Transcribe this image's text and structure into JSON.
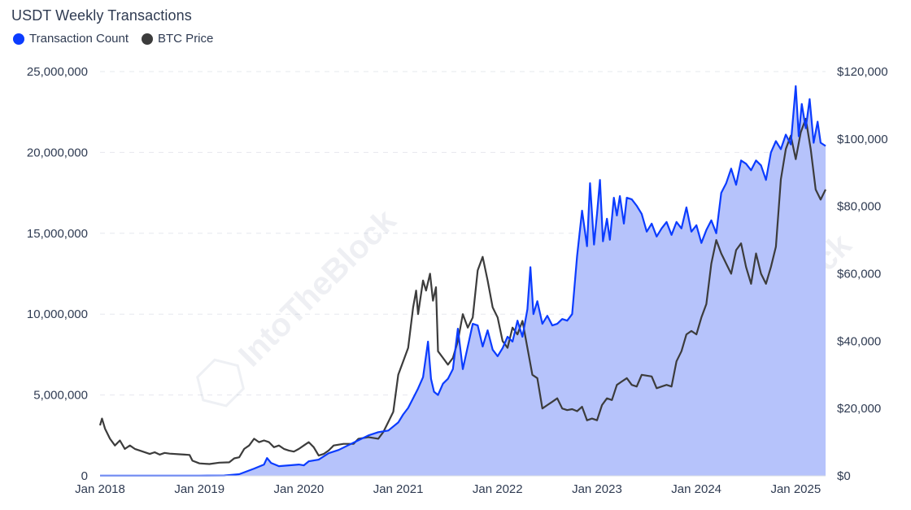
{
  "title": "USDT Weekly Transactions",
  "legend": [
    {
      "label": "Transaction Count",
      "color": "#0b3cff"
    },
    {
      "label": "BTC Price",
      "color": "#3c3c3c"
    }
  ],
  "watermark": "IntoTheBlock",
  "colors": {
    "transaction_line": "#0b3cff",
    "transaction_fill": "#b6c3fb",
    "btc_line": "#3c3c3c",
    "grid": "#e6e8ee",
    "text": "#2f3b52"
  },
  "chart_data": {
    "type": "area",
    "title": "USDT Weekly Transactions",
    "x_tick_labels": [
      "Jan 2018",
      "Jan 2019",
      "Jan 2020",
      "Jan 2021",
      "Jan 2022",
      "Jan 2023",
      "Jan 2024",
      "Jan 2025"
    ],
    "y_left_tick_labels": [
      "0",
      "5,000,000",
      "10,000,000",
      "15,000,000",
      "20,000,000",
      "25,000,000"
    ],
    "y_right_tick_labels": [
      "$0",
      "$20,000",
      "$40,000",
      "$60,000",
      "$80,000",
      "$100,000",
      "$120,000"
    ],
    "y_left_range": [
      0,
      25000000
    ],
    "y_right_range": [
      0,
      120000
    ],
    "x_range": [
      2018.0,
      2025.3
    ],
    "grid": "horizontal dashed",
    "legend_position": "top-left",
    "series": [
      {
        "name": "Transaction Count",
        "axis": "left",
        "render": "area",
        "points": [
          [
            2018.0,
            10000
          ],
          [
            2018.5,
            10000
          ],
          [
            2019.0,
            10000
          ],
          [
            2019.25,
            20000
          ],
          [
            2019.4,
            100000
          ],
          [
            2019.55,
            450000
          ],
          [
            2019.65,
            700000
          ],
          [
            2019.68,
            1100000
          ],
          [
            2019.72,
            800000
          ],
          [
            2019.8,
            600000
          ],
          [
            2019.9,
            650000
          ],
          [
            2020.0,
            700000
          ],
          [
            2020.05,
            650000
          ],
          [
            2020.1,
            900000
          ],
          [
            2020.2,
            1000000
          ],
          [
            2020.3,
            1400000
          ],
          [
            2020.4,
            1600000
          ],
          [
            2020.5,
            1900000
          ],
          [
            2020.6,
            2200000
          ],
          [
            2020.7,
            2500000
          ],
          [
            2020.8,
            2700000
          ],
          [
            2020.9,
            2800000
          ],
          [
            2021.0,
            3300000
          ],
          [
            2021.05,
            3800000
          ],
          [
            2021.1,
            4200000
          ],
          [
            2021.15,
            4800000
          ],
          [
            2021.2,
            5400000
          ],
          [
            2021.25,
            6100000
          ],
          [
            2021.3,
            8300000
          ],
          [
            2021.33,
            6000000
          ],
          [
            2021.36,
            5200000
          ],
          [
            2021.4,
            5000000
          ],
          [
            2021.45,
            5700000
          ],
          [
            2021.5,
            6000000
          ],
          [
            2021.55,
            6600000
          ],
          [
            2021.6,
            9100000
          ],
          [
            2021.65,
            6600000
          ],
          [
            2021.7,
            8000000
          ],
          [
            2021.75,
            9400000
          ],
          [
            2021.8,
            9300000
          ],
          [
            2021.85,
            8000000
          ],
          [
            2021.9,
            9000000
          ],
          [
            2021.95,
            7800000
          ],
          [
            2022.0,
            7400000
          ],
          [
            2022.05,
            7900000
          ],
          [
            2022.1,
            8600000
          ],
          [
            2022.15,
            8300000
          ],
          [
            2022.2,
            9600000
          ],
          [
            2022.25,
            8600000
          ],
          [
            2022.3,
            10300000
          ],
          [
            2022.33,
            12900000
          ],
          [
            2022.36,
            10000000
          ],
          [
            2022.4,
            10800000
          ],
          [
            2022.45,
            9400000
          ],
          [
            2022.5,
            9900000
          ],
          [
            2022.55,
            9300000
          ],
          [
            2022.6,
            9400000
          ],
          [
            2022.65,
            9700000
          ],
          [
            2022.7,
            9600000
          ],
          [
            2022.75,
            10000000
          ],
          [
            2022.8,
            13600000
          ],
          [
            2022.85,
            16400000
          ],
          [
            2022.9,
            14200000
          ],
          [
            2022.93,
            18100000
          ],
          [
            2022.97,
            14300000
          ],
          [
            2023.0,
            16200000
          ],
          [
            2023.03,
            18300000
          ],
          [
            2023.06,
            14500000
          ],
          [
            2023.1,
            15900000
          ],
          [
            2023.13,
            14600000
          ],
          [
            2023.17,
            17200000
          ],
          [
            2023.2,
            16100000
          ],
          [
            2023.23,
            17300000
          ],
          [
            2023.27,
            15600000
          ],
          [
            2023.3,
            17200000
          ],
          [
            2023.35,
            17100000
          ],
          [
            2023.4,
            16700000
          ],
          [
            2023.45,
            16200000
          ],
          [
            2023.5,
            15100000
          ],
          [
            2023.55,
            15600000
          ],
          [
            2023.6,
            14800000
          ],
          [
            2023.65,
            15300000
          ],
          [
            2023.7,
            15700000
          ],
          [
            2023.75,
            14900000
          ],
          [
            2023.8,
            15700000
          ],
          [
            2023.85,
            15300000
          ],
          [
            2023.9,
            16600000
          ],
          [
            2023.95,
            15100000
          ],
          [
            2024.0,
            15500000
          ],
          [
            2024.05,
            14400000
          ],
          [
            2024.1,
            15200000
          ],
          [
            2024.15,
            15800000
          ],
          [
            2024.2,
            15000000
          ],
          [
            2024.25,
            17500000
          ],
          [
            2024.3,
            18100000
          ],
          [
            2024.35,
            19000000
          ],
          [
            2024.4,
            18000000
          ],
          [
            2024.45,
            19500000
          ],
          [
            2024.5,
            19300000
          ],
          [
            2024.55,
            18900000
          ],
          [
            2024.6,
            19500000
          ],
          [
            2024.65,
            19200000
          ],
          [
            2024.7,
            18300000
          ],
          [
            2024.75,
            20000000
          ],
          [
            2024.8,
            20700000
          ],
          [
            2024.85,
            20200000
          ],
          [
            2024.9,
            21100000
          ],
          [
            2024.95,
            20500000
          ],
          [
            2025.0,
            24100000
          ],
          [
            2025.03,
            21000000
          ],
          [
            2025.06,
            23000000
          ],
          [
            2025.1,
            21500000
          ],
          [
            2025.14,
            23300000
          ],
          [
            2025.18,
            20600000
          ],
          [
            2025.22,
            21900000
          ],
          [
            2025.25,
            20600000
          ],
          [
            2025.3,
            20400000
          ]
        ]
      },
      {
        "name": "BTC Price",
        "axis": "right",
        "render": "line",
        "points": [
          [
            2018.0,
            15000
          ],
          [
            2018.02,
            17000
          ],
          [
            2018.05,
            14000
          ],
          [
            2018.1,
            11000
          ],
          [
            2018.15,
            9000
          ],
          [
            2018.2,
            10500
          ],
          [
            2018.25,
            8000
          ],
          [
            2018.3,
            9000
          ],
          [
            2018.35,
            8000
          ],
          [
            2018.4,
            7500
          ],
          [
            2018.5,
            6500
          ],
          [
            2018.55,
            7000
          ],
          [
            2018.6,
            6300
          ],
          [
            2018.65,
            6800
          ],
          [
            2018.7,
            6600
          ],
          [
            2018.8,
            6400
          ],
          [
            2018.85,
            6300
          ],
          [
            2018.9,
            6200
          ],
          [
            2018.93,
            4500
          ],
          [
            2019.0,
            3700
          ],
          [
            2019.1,
            3500
          ],
          [
            2019.2,
            3900
          ],
          [
            2019.3,
            4000
          ],
          [
            2019.35,
            5200
          ],
          [
            2019.4,
            5500
          ],
          [
            2019.45,
            8000
          ],
          [
            2019.5,
            9000
          ],
          [
            2019.55,
            11000
          ],
          [
            2019.6,
            10000
          ],
          [
            2019.65,
            10500
          ],
          [
            2019.7,
            10000
          ],
          [
            2019.75,
            8500
          ],
          [
            2019.8,
            9000
          ],
          [
            2019.85,
            8000
          ],
          [
            2019.9,
            7500
          ],
          [
            2019.95,
            7200
          ],
          [
            2020.0,
            8000
          ],
          [
            2020.05,
            9000
          ],
          [
            2020.1,
            10000
          ],
          [
            2020.15,
            8500
          ],
          [
            2020.2,
            6000
          ],
          [
            2020.25,
            6500
          ],
          [
            2020.3,
            7500
          ],
          [
            2020.35,
            9000
          ],
          [
            2020.45,
            9500
          ],
          [
            2020.55,
            9500
          ],
          [
            2020.6,
            11000
          ],
          [
            2020.7,
            11500
          ],
          [
            2020.8,
            11000
          ],
          [
            2020.85,
            13000
          ],
          [
            2020.9,
            16000
          ],
          [
            2020.95,
            19000
          ],
          [
            2021.0,
            30000
          ],
          [
            2021.05,
            34000
          ],
          [
            2021.1,
            38000
          ],
          [
            2021.15,
            50000
          ],
          [
            2021.18,
            55000
          ],
          [
            2021.2,
            48000
          ],
          [
            2021.25,
            58000
          ],
          [
            2021.28,
            55000
          ],
          [
            2021.32,
            60000
          ],
          [
            2021.35,
            52000
          ],
          [
            2021.38,
            56000
          ],
          [
            2021.4,
            37000
          ],
          [
            2021.45,
            35000
          ],
          [
            2021.5,
            33000
          ],
          [
            2021.55,
            35000
          ],
          [
            2021.6,
            40000
          ],
          [
            2021.65,
            48000
          ],
          [
            2021.7,
            44000
          ],
          [
            2021.75,
            47000
          ],
          [
            2021.8,
            61000
          ],
          [
            2021.85,
            65000
          ],
          [
            2021.9,
            58000
          ],
          [
            2021.95,
            50000
          ],
          [
            2022.0,
            47000
          ],
          [
            2022.05,
            40000
          ],
          [
            2022.1,
            38000
          ],
          [
            2022.15,
            44000
          ],
          [
            2022.2,
            42000
          ],
          [
            2022.25,
            46000
          ],
          [
            2022.3,
            38000
          ],
          [
            2022.35,
            30000
          ],
          [
            2022.4,
            29000
          ],
          [
            2022.45,
            20000
          ],
          [
            2022.5,
            21000
          ],
          [
            2022.55,
            22000
          ],
          [
            2022.6,
            23000
          ],
          [
            2022.65,
            20000
          ],
          [
            2022.7,
            19500
          ],
          [
            2022.75,
            19800
          ],
          [
            2022.8,
            19200
          ],
          [
            2022.85,
            20500
          ],
          [
            2022.9,
            16500
          ],
          [
            2022.95,
            17000
          ],
          [
            2023.0,
            16500
          ],
          [
            2023.05,
            21000
          ],
          [
            2023.1,
            23000
          ],
          [
            2023.15,
            22500
          ],
          [
            2023.2,
            27000
          ],
          [
            2023.25,
            28000
          ],
          [
            2023.3,
            29000
          ],
          [
            2023.35,
            27000
          ],
          [
            2023.4,
            26500
          ],
          [
            2023.45,
            30000
          ],
          [
            2023.55,
            29500
          ],
          [
            2023.6,
            26000
          ],
          [
            2023.65,
            26500
          ],
          [
            2023.7,
            27000
          ],
          [
            2023.75,
            26500
          ],
          [
            2023.8,
            34000
          ],
          [
            2023.85,
            37000
          ],
          [
            2023.9,
            42000
          ],
          [
            2023.95,
            43000
          ],
          [
            2024.0,
            42000
          ],
          [
            2024.05,
            47000
          ],
          [
            2024.1,
            51000
          ],
          [
            2024.15,
            63000
          ],
          [
            2024.2,
            70000
          ],
          [
            2024.25,
            66000
          ],
          [
            2024.3,
            63000
          ],
          [
            2024.35,
            60000
          ],
          [
            2024.4,
            67000
          ],
          [
            2024.45,
            69000
          ],
          [
            2024.5,
            62000
          ],
          [
            2024.55,
            57000
          ],
          [
            2024.6,
            66000
          ],
          [
            2024.65,
            60000
          ],
          [
            2024.7,
            57000
          ],
          [
            2024.75,
            62000
          ],
          [
            2024.8,
            68000
          ],
          [
            2024.85,
            88000
          ],
          [
            2024.9,
            97000
          ],
          [
            2024.95,
            101000
          ],
          [
            2025.0,
            94000
          ],
          [
            2025.05,
            102000
          ],
          [
            2025.1,
            106000
          ],
          [
            2025.15,
            97000
          ],
          [
            2025.2,
            85000
          ],
          [
            2025.25,
            82000
          ],
          [
            2025.3,
            85000
          ]
        ]
      }
    ]
  }
}
